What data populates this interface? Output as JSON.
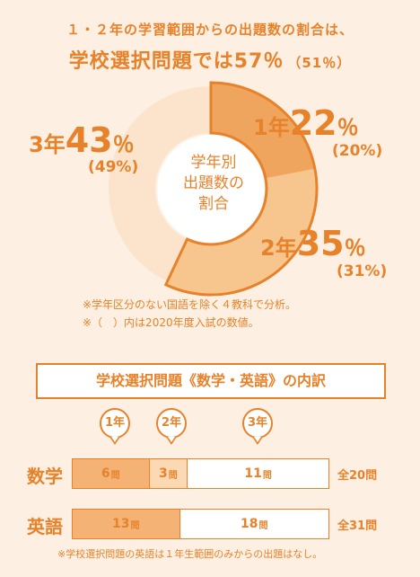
{
  "headline": {
    "line1": "１・２年の学習範囲からの出題数の割合は、",
    "line2_text": "学校選択問題では",
    "line2_pct": "57％",
    "line2_prev": "（51％）"
  },
  "chart_data": [
    {
      "type": "pie",
      "title": "学年別出題数の割合",
      "center_label_lines": [
        "学年別",
        "出題数の",
        "割合"
      ],
      "categories": [
        "1年",
        "2年",
        "3年"
      ],
      "values": [
        22,
        35,
        43
      ],
      "previous_values": [
        20,
        31,
        49
      ],
      "labels": [
        {
          "year": "1年",
          "pct": "22",
          "sym": "％",
          "prev": "(20%)"
        },
        {
          "year": "2年",
          "pct": "35",
          "sym": "％",
          "prev": "(31%)"
        },
        {
          "year": "3年",
          "pct": "43",
          "sym": "％",
          "prev": "(49%)"
        }
      ],
      "colors": [
        "#f0a55f",
        "#f7c68f",
        "#fbe4cb"
      ],
      "highlight_border": "#e8822a"
    },
    {
      "type": "bar",
      "orientation": "horizontal-stacked",
      "title": "学校選択問題《数学・英語》の内訳",
      "categories": [
        "数学",
        "英語"
      ],
      "series": [
        {
          "name": "1年",
          "values": [
            6,
            13
          ]
        },
        {
          "name": "2年",
          "values": [
            3,
            0
          ]
        },
        {
          "name": "3年",
          "values": [
            11,
            18
          ]
        }
      ],
      "totals": [
        "全20問",
        "全31問"
      ],
      "unit": "問",
      "colors": [
        "#f4b375",
        "#fbd9b4",
        "#ffffff"
      ]
    }
  ],
  "notes": [
    "※学年区分のない国語を除く４教科で分析。",
    "※（　）内は2020年度入試の数値。"
  ],
  "footnote": "※学校選択問題の英語は１年生範囲のみからの出題はなし。",
  "pins": [
    "1年",
    "2年",
    "3年"
  ]
}
